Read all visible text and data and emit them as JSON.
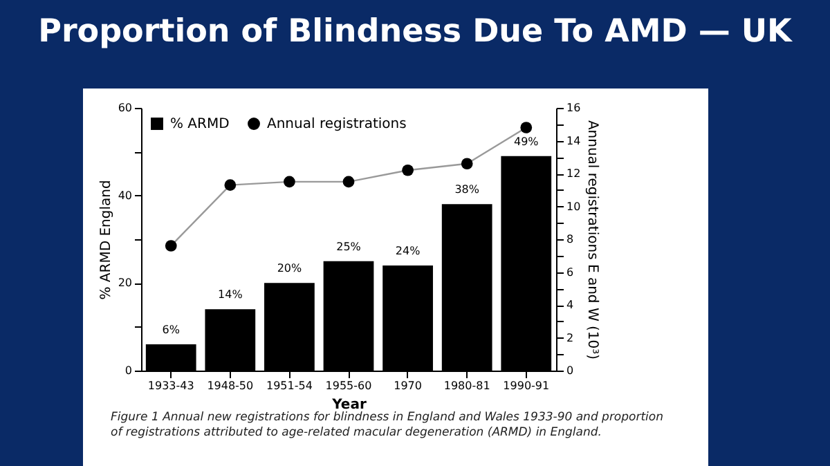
{
  "chart_data": {
    "type": "bar",
    "title": "Proportion of Blindness Due To AMD — UK",
    "xlabel": "Year",
    "ylabel": "% ARMD England",
    "y2label": "Annual registrations E and W (10³)",
    "categories": [
      "1933-43",
      "1948-50",
      "1951-54",
      "1955-60",
      "1970",
      "1980-81",
      "1990-91"
    ],
    "series": [
      {
        "name": "% ARMD",
        "color": "#000000",
        "values": [
          6,
          14,
          20,
          25,
          24,
          38,
          49
        ],
        "value_labels": [
          "6%",
          "14%",
          "20%",
          "25%",
          "24%",
          "38%",
          "49%"
        ]
      },
      {
        "name": "Annual registrations",
        "type": "line",
        "axis": "y2",
        "color": "#000000",
        "marker": "circle",
        "values": [
          7.6,
          11.3,
          11.5,
          11.5,
          12.2,
          12.6,
          14.8
        ]
      }
    ],
    "ylim": [
      0,
      60
    ],
    "yticks": [
      0,
      {
        "value": 10,
        "label": null
      },
      20,
      {
        "value": 30,
        "label": null
      },
      40,
      {
        "value": 50,
        "label": null
      },
      60
    ],
    "y2lim": [
      0,
      16
    ],
    "y2ticks": [
      0,
      {
        "value": 1,
        "label": null
      },
      2,
      {
        "value": 3,
        "label": null
      },
      4,
      {
        "value": 5,
        "label": null
      },
      6,
      {
        "value": 7,
        "label": null
      },
      8,
      {
        "value": 9,
        "label": null
      },
      10,
      {
        "value": 11,
        "label": null
      },
      12,
      {
        "value": 13,
        "label": null
      },
      14,
      {
        "value": 15,
        "label": null
      },
      16
    ],
    "grid": false,
    "legend": "top left",
    "annotations": [
      "Figure 1     Annual new registrations for blindness in England and Wales 1933-90 and proportion of registrations attributed to age-related macular degeneration (ARMD) in England."
    ]
  }
}
